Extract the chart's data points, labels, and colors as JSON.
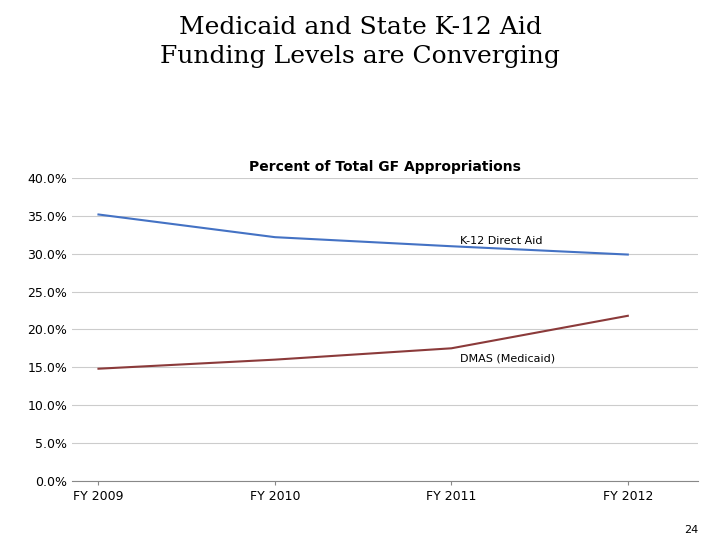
{
  "title": "Medicaid and State K-12 Aid\nFunding Levels are Converging",
  "subtitle": "Percent of Total GF Appropriations",
  "years": [
    "FY 2009",
    "FY 2010",
    "FY 2011",
    "FY 2012"
  ],
  "k12_values": [
    0.352,
    0.322,
    0.31,
    0.299
  ],
  "medicaid_values": [
    0.148,
    0.16,
    0.175,
    0.218
  ],
  "k12_color": "#4472C4",
  "medicaid_color": "#8B3A3A",
  "k12_label": "K-12 Direct Aid",
  "medicaid_label": "DMAS (Medicaid)",
  "ylim": [
    0.0,
    0.4
  ],
  "yticks": [
    0.0,
    0.05,
    0.1,
    0.15,
    0.2,
    0.25,
    0.3,
    0.35,
    0.4
  ],
  "ytick_labels": [
    "0.0%",
    "5.0%",
    "10.0%",
    "15.0%",
    "20.0%",
    "25.0%",
    "30.0%",
    "35.0%",
    "40.0%"
  ],
  "page_number": "24",
  "background_color": "#ffffff",
  "title_fontsize": 18,
  "subtitle_fontsize": 10,
  "axis_fontsize": 9,
  "label_fontsize": 8,
  "line_width": 1.5
}
